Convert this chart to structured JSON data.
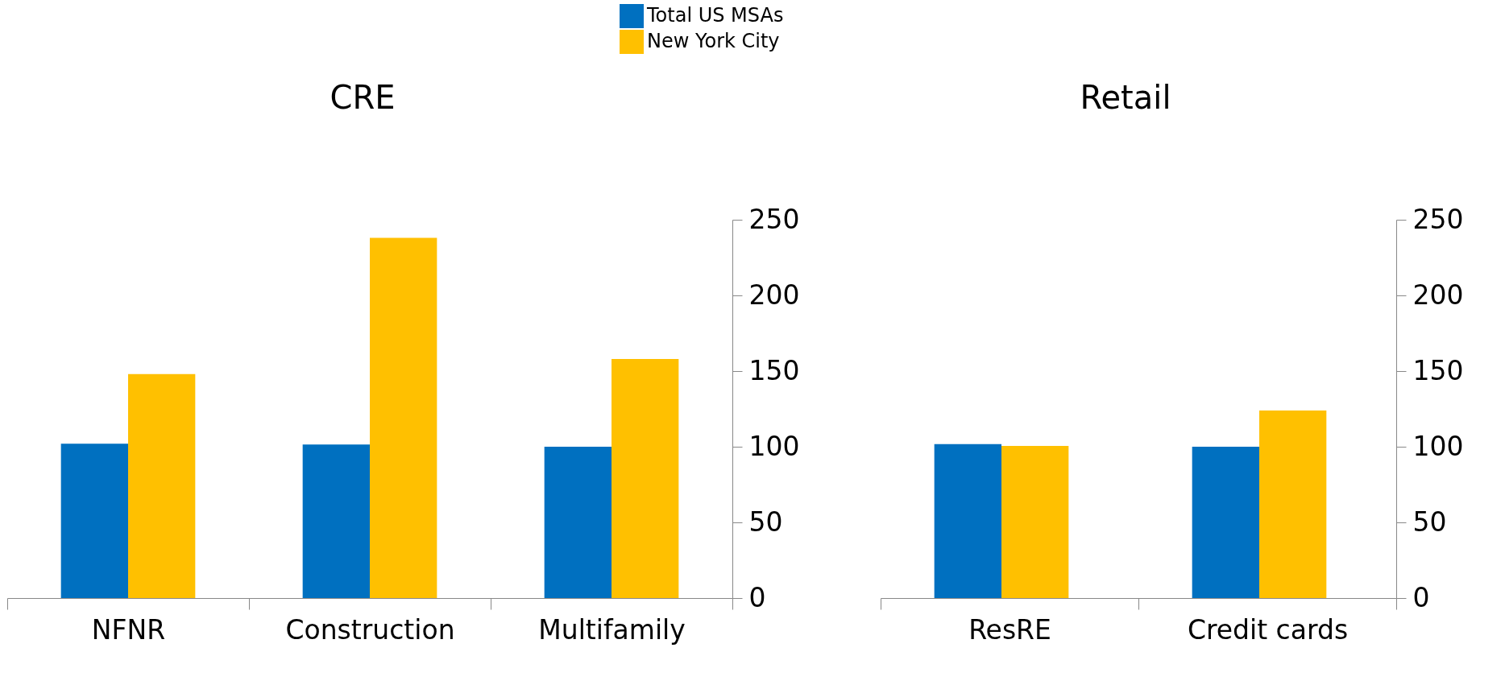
{
  "chart_data": [
    {
      "type": "bar",
      "title": "CRE",
      "categories": [
        "NFNR",
        "Construction",
        "Multifamily"
      ],
      "series": [
        {
          "name": "Total US MSAs",
          "color": "#0070c0",
          "values": [
            102,
            101.5,
            100
          ]
        },
        {
          "name": "New York City",
          "color": "#ffc000",
          "values": [
            148,
            238,
            158
          ]
        }
      ],
      "ylim": [
        0,
        250
      ],
      "yticks": [
        0,
        50,
        100,
        150,
        200,
        250
      ],
      "legend": "top"
    },
    {
      "type": "bar",
      "title": "Retail",
      "categories": [
        "ResRE",
        "Credit cards"
      ],
      "series": [
        {
          "color": "#0070c0",
          "values": [
            101.7,
            100
          ]
        },
        {
          "color": "#ffc000",
          "values": [
            100.5,
            124
          ]
        }
      ],
      "ylim": [
        0,
        250
      ],
      "yticks": [
        0,
        50,
        100,
        150,
        200,
        250
      ]
    }
  ]
}
